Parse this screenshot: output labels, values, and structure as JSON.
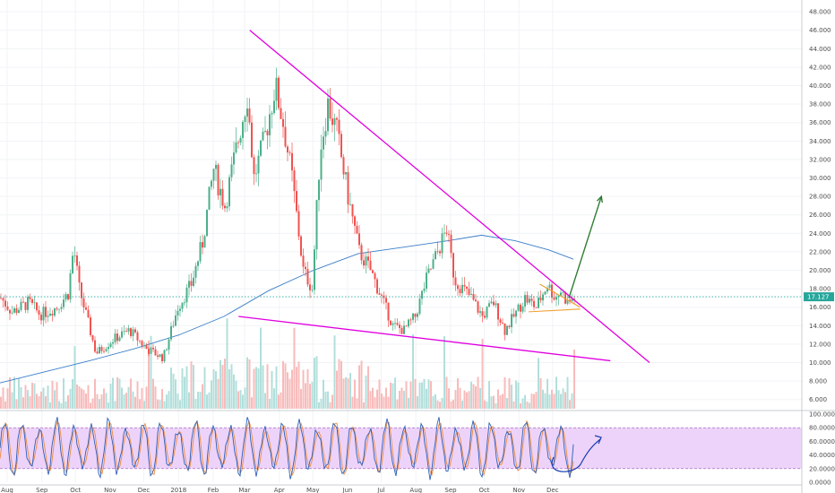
{
  "chart_data": [
    {
      "type": "candlestick",
      "title": "",
      "x_axis_labels": [
        "Aug",
        "Sep",
        "Oct",
        "Nov",
        "Dec",
        "2018",
        "Feb",
        "Mar",
        "Apr",
        "May",
        "Jun",
        "Jul",
        "Aug",
        "Sep",
        "Oct",
        "Nov",
        "Dec"
      ],
      "y_axis": {
        "ticks": [
          "48.000",
          "46.000",
          "44.000",
          "42.000",
          "40.000",
          "38.000",
          "36.000",
          "34.000",
          "32.000",
          "30.000",
          "28.000",
          "26.000",
          "24.000",
          "22.000",
          "20.000",
          "18.000",
          "16.000",
          "14.000",
          "12.000",
          "10.000",
          "8.000",
          "6.000"
        ],
        "ylim": [
          5,
          48.5
        ]
      },
      "last_price": "17.127",
      "last_price_value": 17.127,
      "colors": {
        "up": "#4caf8a",
        "down": "#ef5350",
        "trendline": "#e000e0",
        "ma": "#3a7ec9",
        "arrow": "#2e7d32",
        "pennant": "#f0a030",
        "price_line": "#26a69a",
        "volume_up": "#b2dfdb",
        "volume_down": "#f8bbbb"
      },
      "price_anchors": [
        {
          "d": 0,
          "p": 17
        },
        {
          "d": 10,
          "p": 15.5
        },
        {
          "d": 25,
          "p": 16.5
        },
        {
          "d": 35,
          "p": 15.2
        },
        {
          "d": 50,
          "p": 16
        },
        {
          "d": 60,
          "p": 17.5
        },
        {
          "d": 65,
          "p": 22.5
        },
        {
          "d": 70,
          "p": 18
        },
        {
          "d": 85,
          "p": 11
        },
        {
          "d": 100,
          "p": 12.5
        },
        {
          "d": 115,
          "p": 13.5
        },
        {
          "d": 130,
          "p": 11.5
        },
        {
          "d": 145,
          "p": 10.5
        },
        {
          "d": 158,
          "p": 16
        },
        {
          "d": 170,
          "p": 18.5
        },
        {
          "d": 180,
          "p": 23
        },
        {
          "d": 190,
          "p": 31
        },
        {
          "d": 200,
          "p": 27
        },
        {
          "d": 210,
          "p": 33
        },
        {
          "d": 220,
          "p": 39
        },
        {
          "d": 226,
          "p": 30
        },
        {
          "d": 235,
          "p": 34
        },
        {
          "d": 245,
          "p": 40
        },
        {
          "d": 252,
          "p": 36
        },
        {
          "d": 260,
          "p": 30
        },
        {
          "d": 270,
          "p": 20
        },
        {
          "d": 278,
          "p": 18
        },
        {
          "d": 285,
          "p": 33
        },
        {
          "d": 292,
          "p": 38
        },
        {
          "d": 300,
          "p": 35
        },
        {
          "d": 310,
          "p": 28
        },
        {
          "d": 320,
          "p": 22
        },
        {
          "d": 330,
          "p": 20
        },
        {
          "d": 340,
          "p": 17
        },
        {
          "d": 350,
          "p": 14
        },
        {
          "d": 360,
          "p": 13.5
        },
        {
          "d": 370,
          "p": 15
        },
        {
          "d": 380,
          "p": 19
        },
        {
          "d": 390,
          "p": 22
        },
        {
          "d": 398,
          "p": 24.5
        },
        {
          "d": 405,
          "p": 19
        },
        {
          "d": 420,
          "p": 17
        },
        {
          "d": 430,
          "p": 15
        },
        {
          "d": 440,
          "p": 16.5
        },
        {
          "d": 450,
          "p": 13.5
        },
        {
          "d": 458,
          "p": 15
        },
        {
          "d": 468,
          "p": 17
        },
        {
          "d": 478,
          "p": 16
        },
        {
          "d": 488,
          "p": 18.5
        },
        {
          "d": 495,
          "p": 17
        },
        {
          "d": 500,
          "p": 17.8
        },
        {
          "d": 506,
          "p": 16.5
        },
        {
          "d": 512,
          "p": 17.1
        }
      ],
      "moving_average": [
        {
          "d": 0,
          "p": 7.8
        },
        {
          "d": 40,
          "p": 9
        },
        {
          "d": 80,
          "p": 10.2
        },
        {
          "d": 120,
          "p": 11.5
        },
        {
          "d": 160,
          "p": 13
        },
        {
          "d": 200,
          "p": 15
        },
        {
          "d": 240,
          "p": 17.8
        },
        {
          "d": 280,
          "p": 20
        },
        {
          "d": 320,
          "p": 21.8
        },
        {
          "d": 360,
          "p": 22.5
        },
        {
          "d": 400,
          "p": 23.2
        },
        {
          "d": 430,
          "p": 23.8
        },
        {
          "d": 460,
          "p": 23.2
        },
        {
          "d": 490,
          "p": 22.2
        },
        {
          "d": 512,
          "p": 21.2
        }
      ],
      "trendlines": [
        {
          "name": "upper-resistance",
          "from": {
            "d": 223,
            "p": 46
          },
          "to": {
            "d": 580,
            "p": 10
          }
        },
        {
          "name": "lower-support",
          "from": {
            "d": 213,
            "p": 15
          },
          "to": {
            "d": 545,
            "p": 10.2
          }
        }
      ],
      "pennant": [
        {
          "from": {
            "d": 482,
            "p": 18.5
          },
          "to": {
            "d": 518,
            "p": 16
          }
        },
        {
          "from": {
            "d": 472,
            "p": 15.5
          },
          "to": {
            "d": 518,
            "p": 15.8
          }
        }
      ],
      "arrow": {
        "from": {
          "d": 508,
          "p": 17
        },
        "to": {
          "d": 537,
          "p": 28
        }
      }
    },
    {
      "type": "line",
      "title": "",
      "y_axis": {
        "ticks": [
          "100.0000",
          "80.0000",
          "60.0000",
          "40.0000",
          "20.0000",
          "0.0000"
        ],
        "ylim": [
          0,
          100
        ]
      },
      "band": [
        20,
        80
      ],
      "colors": {
        "k": "#2b5fb8",
        "d": "#f08c3c",
        "band_fill": "#e8c8f8",
        "band_edge": "#9b59b6",
        "scribble": "#1a3fb0"
      },
      "oscillator_phases": 33
    }
  ]
}
